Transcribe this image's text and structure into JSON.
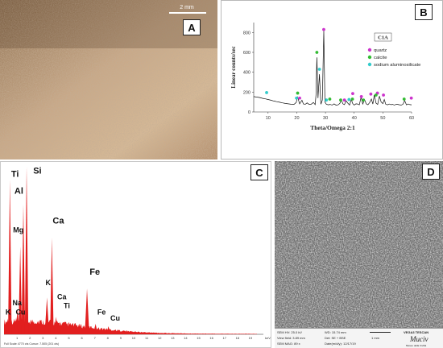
{
  "panel_a": {
    "label": "A",
    "scale_text": "2 mm"
  },
  "panel_b": {
    "label": "B",
    "sample": "C1A",
    "ylabel": "Linear counts/sec",
    "xlabel": "Theta/Omega 2:1",
    "legend": [
      {
        "name": "quartz",
        "color": "#cc33cc"
      },
      {
        "name": "calcite",
        "color": "#33bb33"
      },
      {
        "name": "sodium aluminosilicate",
        "color": "#33cccc"
      }
    ]
  },
  "panel_c": {
    "label": "C",
    "footer_left": "Full Scale 4770 cts Cursor: 7.505 (201 cts)",
    "footer_right": "keV"
  },
  "panel_d": {
    "label": "D",
    "sem": {
      "hv": "SEM HV: 25.0 kV",
      "wd": "WD: 15.74 mm",
      "view": "View field: 3.89 mm",
      "det": "Det: SE + BSE",
      "mag": "SEM MAG: 89 x",
      "date": "Date(m/d/y): 12/17/19",
      "scale": "1 mm",
      "brand": "VEGA3 TESCAN",
      "logo": "Muciv",
      "logo_sub": "Museo della Civiltà"
    }
  },
  "chart_data": [
    {
      "type": "line",
      "title": "C1A",
      "xlabel": "Theta/Omega 2:1",
      "ylabel": "Linear counts/sec",
      "xlim": [
        5,
        60
      ],
      "ylim": [
        0,
        900
      ],
      "x_ticks": [
        10,
        20,
        30,
        40,
        50,
        60
      ],
      "y_ticks": [
        0,
        200,
        400,
        600,
        800
      ],
      "legend_position": "top-right",
      "series": [
        {
          "x": [
            5,
            6,
            7,
            8,
            9,
            10,
            11,
            12,
            13,
            14,
            15,
            16,
            17,
            18,
            19,
            19.8,
            20.3,
            21,
            21.8,
            22.3,
            23,
            23.6,
            24.3,
            25,
            25.8,
            26.4,
            26.7,
            27,
            27.4,
            27.9,
            28.4,
            28.9,
            29.4,
            29.8,
            30.3,
            31,
            31.6,
            32.3,
            33,
            33.7,
            34.4,
            35,
            35.5,
            36.1,
            36.6,
            37.2,
            37.8,
            38.4,
            39,
            39.5,
            40,
            40.6,
            41.2,
            41.8,
            42.4,
            43,
            43.6,
            44.2,
            44.8,
            45.4,
            46,
            46.5,
            47,
            47.6,
            48.2,
            48.8,
            49.4,
            50,
            50.5,
            51,
            51.6,
            52.2,
            52.8,
            53.4,
            54,
            54.6,
            55.2,
            55.8,
            56.4,
            57,
            57.6,
            58.2,
            58.8,
            59.4,
            60
          ],
          "y": [
            155,
            150,
            146,
            138,
            132,
            126,
            118,
            110,
            104,
            98,
            92,
            86,
            82,
            78,
            76,
            95,
            150,
            82,
            118,
            80,
            78,
            92,
            76,
            78,
            96,
            74,
            170,
            550,
            140,
            380,
            78,
            120,
            815,
            100,
            78,
            72,
            76,
            70,
            82,
            68,
            72,
            86,
            120,
            82,
            74,
            112,
            88,
            70,
            126,
            84,
            70,
            82,
            80,
            72,
            148,
            80,
            124,
            82,
            72,
            96,
            130,
            80,
            172,
            90,
            76,
            160,
            100,
            84,
            126,
            78,
            72,
            80,
            74,
            76,
            70,
            76,
            76,
            72,
            70,
            78,
            115,
            72,
            80,
            74,
            72
          ]
        }
      ],
      "markers": [
        {
          "name": "quartz",
          "x": [
            21,
            29.4,
            36.6,
            39.5,
            42.5,
            45.8,
            48.1,
            50.2,
            59.9
          ],
          "y": [
            140,
            830,
            120,
            185,
            155,
            180,
            190,
            170,
            140
          ]
        },
        {
          "name": "calcite",
          "x": [
            20.3,
            27,
            31.5,
            35.3,
            39.4,
            43.2,
            47.6,
            57.4
          ],
          "y": [
            190,
            600,
            130,
            120,
            130,
            120,
            170,
            130
          ]
        },
        {
          "name": "sodium aluminosilicate",
          "x": [
            9.5,
            19.9,
            27.9,
            30.3,
            38.2
          ],
          "y": [
            195,
            140,
            430,
            120,
            125
          ]
        }
      ]
    },
    {
      "type": "line",
      "xlabel": "keV",
      "xlim": [
        0,
        20
      ],
      "ylim": [
        0,
        4770
      ],
      "x_ticks": [
        1,
        2,
        3,
        4,
        5,
        6,
        7,
        8,
        9,
        10,
        11,
        12,
        13,
        14,
        15,
        16,
        17,
        18,
        19
      ],
      "peaks": [
        {
          "element": "K",
          "x": 0.27,
          "y": 450
        },
        {
          "element": "Ca",
          "x": 0.34,
          "y": 420
        },
        {
          "element": "Ti",
          "x": 0.45,
          "y": 4400
        },
        {
          "element": "Na",
          "x": 1.04,
          "y": 700
        },
        {
          "element": "Cu",
          "x": 0.93,
          "y": 470
        },
        {
          "element": "Mg",
          "x": 1.25,
          "y": 2500
        },
        {
          "element": "Al",
          "x": 1.49,
          "y": 3700
        },
        {
          "element": "Si",
          "x": 1.74,
          "y": 4770
        },
        {
          "element": "K",
          "x": 3.31,
          "y": 1050
        },
        {
          "element": "Ca",
          "x": 3.69,
          "y": 2750
        },
        {
          "element": "Ca",
          "x": 4.01,
          "y": 500
        },
        {
          "element": "Ti",
          "x": 4.51,
          "y": 330
        },
        {
          "element": "Fe",
          "x": 6.4,
          "y": 1300
        },
        {
          "element": "Fe",
          "x": 7.06,
          "y": 300
        },
        {
          "element": "Cu",
          "x": 8.05,
          "y": 230
        }
      ],
      "element_labels": [
        {
          "text": "Ti",
          "x": 0.55,
          "y": 4480
        },
        {
          "text": "Si",
          "x": 2.25,
          "y": 4570
        },
        {
          "text": "Al",
          "x": 0.8,
          "y": 4000
        },
        {
          "text": "Mg",
          "x": 0.7,
          "y": 2900
        },
        {
          "text": "Ca",
          "x": 3.75,
          "y": 3150
        },
        {
          "text": "Fe",
          "x": 6.6,
          "y": 1700
        },
        {
          "text": "K",
          "x": 3.2,
          "y": 1400
        },
        {
          "text": "Ca",
          "x": 4.1,
          "y": 1000
        },
        {
          "text": "Ti",
          "x": 4.6,
          "y": 750
        },
        {
          "text": "Na",
          "x": 0.65,
          "y": 820
        },
        {
          "text": "Cu",
          "x": 0.9,
          "y": 560
        },
        {
          "text": "K",
          "x": 0.12,
          "y": 560
        },
        {
          "text": "Fe",
          "x": 7.2,
          "y": 560
        },
        {
          "text": "Cu",
          "x": 8.2,
          "y": 390
        }
      ]
    }
  ]
}
